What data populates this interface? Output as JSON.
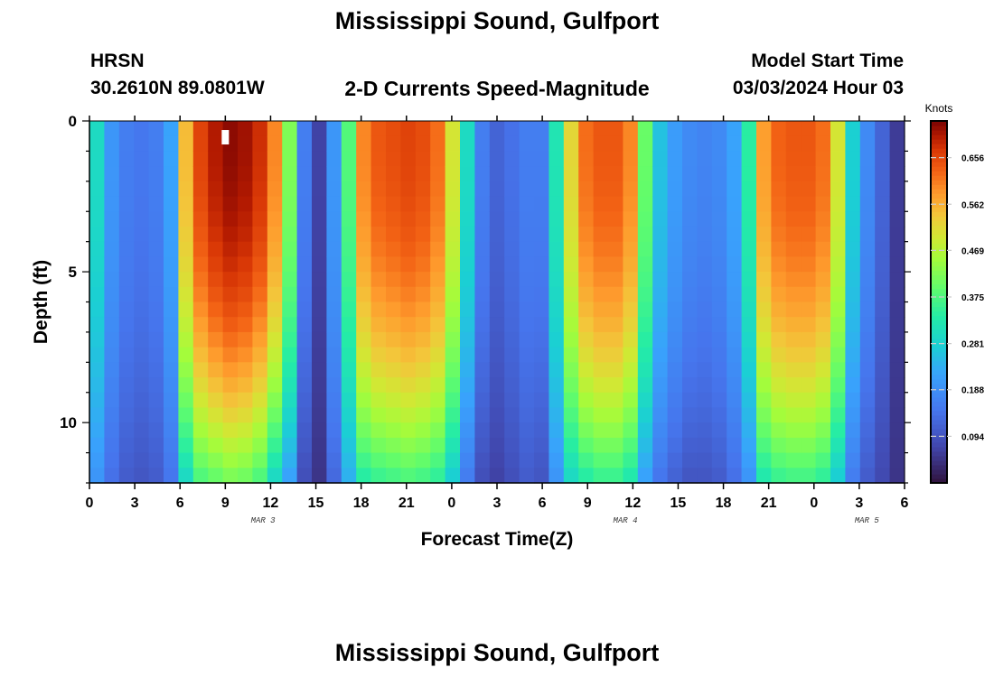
{
  "header": {
    "title": "Mississippi Sound, Gulfport",
    "station_id": "HRSN",
    "coords": "30.2610N  89.0801W",
    "product": "2-D Currents Speed-Magnitude",
    "model_label": "Model Start Time",
    "model_time": "03/03/2024 Hour 03"
  },
  "footer": {
    "title": "Mississippi Sound, Gulfport"
  },
  "colorbar": {
    "unit": "Knots",
    "ticks": [
      0.094,
      0.188,
      0.281,
      0.375,
      0.469,
      0.562,
      0.656
    ],
    "tick_labels": [
      "0.094",
      "0.188",
      "0.281",
      "0.375",
      "0.469",
      "0.562",
      "0.656"
    ],
    "range": [
      0.0,
      0.73
    ]
  },
  "chart_data": {
    "type": "heatmap",
    "title": "Mississippi Sound, Gulfport",
    "subtitle": "2-D Currents Speed-Magnitude",
    "xlabel": "Forecast Time(Z)",
    "ylabel": "Depth (ft)",
    "xlim": [
      0,
      54
    ],
    "ylim": [
      0,
      12
    ],
    "x_ticks": [
      0,
      3,
      6,
      9,
      12,
      15,
      18,
      21,
      24,
      27,
      30,
      33,
      36,
      39,
      42,
      45,
      48,
      51,
      54
    ],
    "x_tick_labels": [
      "0",
      "3",
      "6",
      "9",
      "12",
      "15",
      "18",
      "21",
      "0",
      "3",
      "6",
      "9",
      "12",
      "15",
      "18",
      "21",
      "0",
      "3",
      "6"
    ],
    "y_ticks": [
      0,
      5,
      10
    ],
    "y_tick_labels": [
      "0",
      "5",
      "10"
    ],
    "date_labels": [
      {
        "x": 11.5,
        "label": "MAR 3"
      },
      {
        "x": 35.5,
        "label": "MAR 4"
      },
      {
        "x": 51.5,
        "label": "MAR 5"
      }
    ],
    "hours": [
      0,
      1,
      2,
      3,
      4,
      5,
      6,
      7,
      8,
      9,
      10,
      11,
      12,
      13,
      14,
      15,
      16,
      17,
      18,
      19,
      20,
      21,
      22,
      23,
      24,
      25,
      26,
      27,
      28,
      29,
      30,
      31,
      32,
      33,
      34,
      35,
      36,
      37,
      38,
      39,
      40,
      41,
      42,
      43,
      44,
      45,
      46,
      47,
      48,
      49,
      50,
      51,
      52,
      53,
      54
    ],
    "depths_ft": [
      0,
      12
    ],
    "speed_surface_knots": [
      0.3,
      0.2,
      0.16,
      0.15,
      0.16,
      0.22,
      0.55,
      0.66,
      0.7,
      0.72,
      0.71,
      0.68,
      0.6,
      0.42,
      0.16,
      0.07,
      0.2,
      0.38,
      0.6,
      0.64,
      0.65,
      0.66,
      0.65,
      0.62,
      0.5,
      0.3,
      0.16,
      0.12,
      0.14,
      0.16,
      0.16,
      0.32,
      0.52,
      0.62,
      0.64,
      0.64,
      0.6,
      0.4,
      0.26,
      0.21,
      0.18,
      0.17,
      0.18,
      0.22,
      0.34,
      0.58,
      0.63,
      0.64,
      0.64,
      0.62,
      0.5,
      0.28,
      0.18,
      0.12,
      0.06
    ],
    "speed_bottom_knots": [
      0.2,
      0.14,
      0.11,
      0.1,
      0.11,
      0.15,
      0.3,
      0.38,
      0.4,
      0.42,
      0.41,
      0.38,
      0.3,
      0.22,
      0.09,
      0.05,
      0.13,
      0.24,
      0.34,
      0.36,
      0.37,
      0.38,
      0.37,
      0.35,
      0.28,
      0.16,
      0.09,
      0.07,
      0.09,
      0.11,
      0.1,
      0.2,
      0.3,
      0.34,
      0.36,
      0.36,
      0.33,
      0.22,
      0.15,
      0.12,
      0.1,
      0.1,
      0.11,
      0.14,
      0.2,
      0.33,
      0.36,
      0.37,
      0.37,
      0.35,
      0.28,
      0.16,
      0.11,
      0.08,
      0.05
    ],
    "marker": {
      "x": 9,
      "depth_ft": 0.3
    }
  }
}
